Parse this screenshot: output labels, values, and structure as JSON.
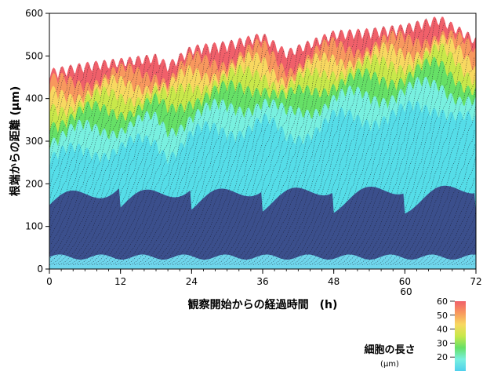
{
  "chart_data": {
    "type": "heatmap",
    "title": "",
    "xlabel": "観察開始からの経過時間　(h)",
    "ylabel": "根端からの距離 (μm)",
    "xlim": [
      0,
      72
    ],
    "ylim": [
      0,
      600
    ],
    "x_ticks": [
      0,
      12,
      24,
      36,
      48,
      60,
      72
    ],
    "y_ticks": [
      0,
      100,
      200,
      300,
      400,
      500,
      600
    ],
    "stray_tick_label": "60",
    "growth_front": {
      "x": [
        0,
        6,
        12,
        18,
        20,
        24,
        30,
        36,
        40,
        48,
        54,
        60,
        66,
        72
      ],
      "y": [
        455,
        470,
        480,
        490,
        470,
        510,
        520,
        540,
        500,
        545,
        550,
        560,
        580,
        530
      ]
    },
    "colorbar": {
      "title": "細胞の長さ",
      "unit": "(μm)",
      "ticks": [
        20,
        30,
        40,
        50,
        60
      ],
      "range": [
        10,
        60
      ],
      "colors": [
        "#4fd0ec",
        "#78f0e0",
        "#66e066",
        "#c8e84a",
        "#f8d860",
        "#f8985e",
        "#f0606a"
      ]
    },
    "colors": {
      "low": "#3b4f8c",
      "mid": "#55dde8",
      "high": "#f0606a"
    }
  }
}
